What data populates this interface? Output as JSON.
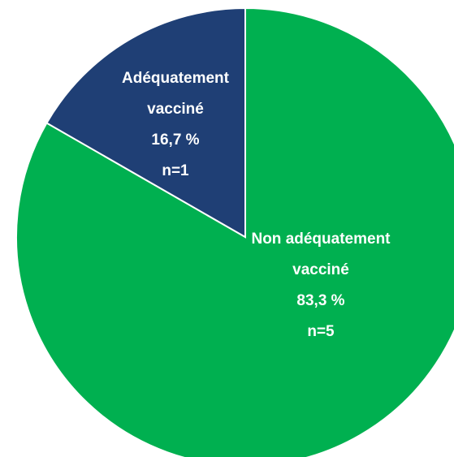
{
  "chart_data": {
    "type": "pie",
    "categories": [
      "Non adéquatement vacciné",
      "Adéquatement vacciné"
    ],
    "values": [
      83.3,
      16.7
    ],
    "value_labels": [
      "83,3 %",
      "16,7 %"
    ],
    "count_labels": [
      "n=5",
      "n=1"
    ],
    "colors": [
      "#00b050",
      "#1f3f75"
    ]
  }
}
